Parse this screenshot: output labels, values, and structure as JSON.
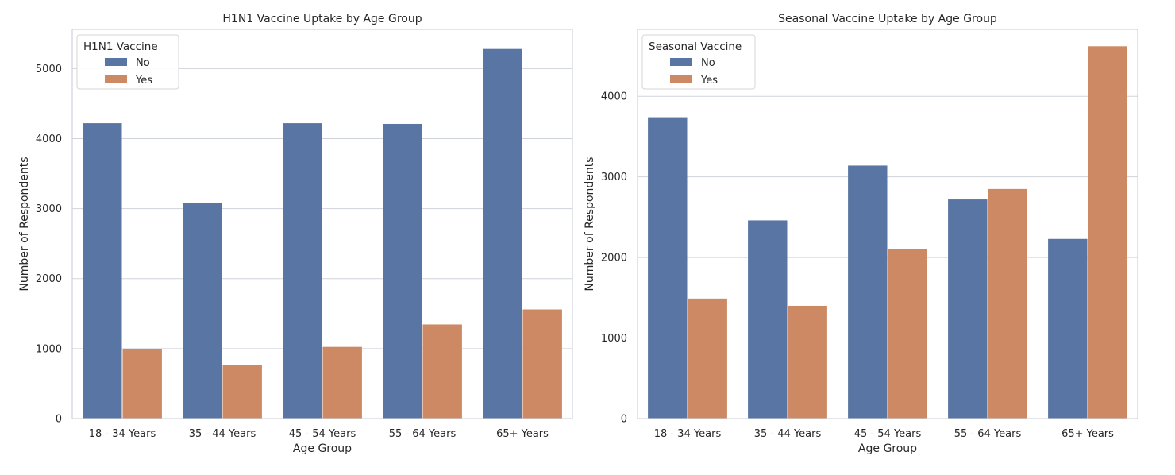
{
  "chart_data": [
    {
      "type": "bar",
      "title": "H1N1 Vaccine Uptake by Age Group",
      "xlabel": "Age Group",
      "ylabel": "Number of Respondents",
      "categories": [
        "18 - 34 Years",
        "35 - 44 Years",
        "45 - 54 Years",
        "55 - 64 Years",
        "65+ Years"
      ],
      "yticks": [
        0,
        1000,
        2000,
        3000,
        4000,
        5000
      ],
      "ylim": [
        0,
        5560
      ],
      "grid": true,
      "legend": {
        "title": "H1N1 Vaccine",
        "placement": "top-left"
      },
      "series": [
        {
          "name": "No",
          "color": "#5975a4",
          "values": [
            4220,
            3080,
            4220,
            4210,
            5280
          ]
        },
        {
          "name": "Yes",
          "color": "#cc8963",
          "values": [
            995,
            770,
            1025,
            1345,
            1560
          ]
        }
      ]
    },
    {
      "type": "bar",
      "title": "Seasonal Vaccine Uptake by Age Group",
      "xlabel": "Age Group",
      "ylabel": "Number of Respondents",
      "categories": [
        "18 - 34 Years",
        "35 - 44 Years",
        "45 - 54 Years",
        "55 - 64 Years",
        "65+ Years"
      ],
      "yticks": [
        0,
        1000,
        2000,
        3000,
        4000
      ],
      "ylim": [
        0,
        4830
      ],
      "grid": true,
      "legend": {
        "title": "Seasonal Vaccine",
        "placement": "top-left"
      },
      "series": [
        {
          "name": "No",
          "color": "#5975a4",
          "values": [
            3740,
            2460,
            3140,
            2720,
            2230
          ]
        },
        {
          "name": "Yes",
          "color": "#cc8963",
          "values": [
            1490,
            1400,
            2100,
            2850,
            4620
          ]
        }
      ]
    }
  ]
}
